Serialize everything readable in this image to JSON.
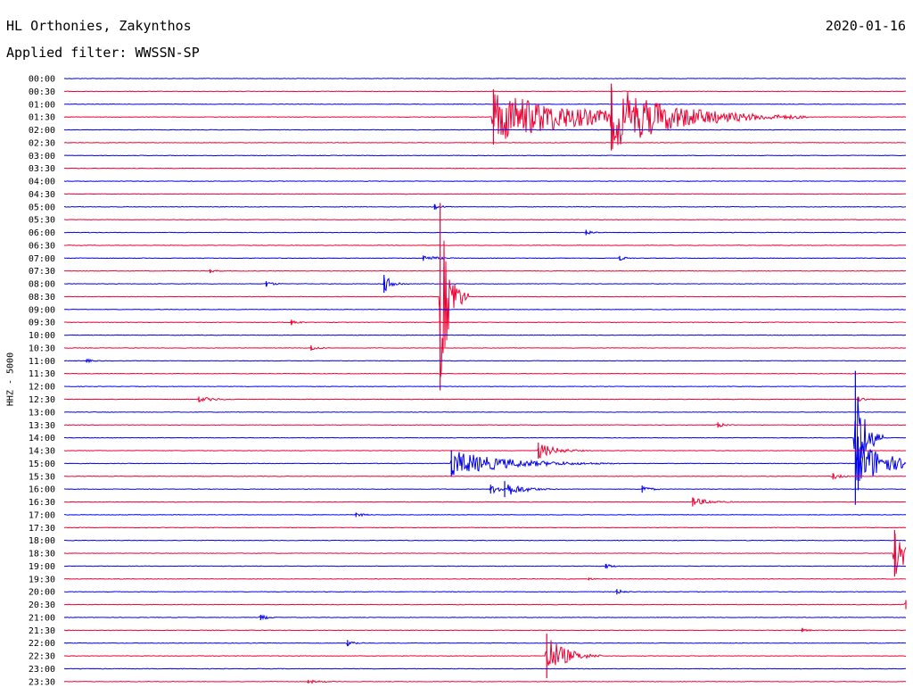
{
  "header": {
    "title": "HL Orthonies, Zakynthos",
    "date": "2020-01-16",
    "filter": "Applied filter: WWSSN-SP"
  },
  "colors": {
    "blue": "#0000ee",
    "red": "#ee0033"
  },
  "chart_data": {
    "type": "line",
    "subtype": "helicorder",
    "ylabel": "HHZ - 5000",
    "row_labels": [
      "00:00",
      "00:30",
      "01:00",
      "01:30",
      "02:00",
      "02:30",
      "03:00",
      "03:30",
      "04:00",
      "04:30",
      "05:00",
      "05:30",
      "06:00",
      "06:30",
      "07:00",
      "07:30",
      "08:00",
      "08:30",
      "09:00",
      "09:30",
      "10:00",
      "10:30",
      "11:00",
      "11:30",
      "12:00",
      "12:30",
      "13:00",
      "13:30",
      "14:00",
      "14:30",
      "15:00",
      "15:30",
      "16:00",
      "16:30",
      "17:00",
      "17:30",
      "18:00",
      "18:30",
      "19:00",
      "19:30",
      "20:00",
      "20:30",
      "21:00",
      "21:30",
      "22:00",
      "22:30",
      "23:00",
      "23:30"
    ],
    "row_minutes": 30,
    "series_colors": [
      "#0000ee",
      "#ee0033"
    ],
    "events": [
      {
        "row": 3,
        "minute": 15.3,
        "amplitude": 62,
        "duration": 9
      },
      {
        "row": 3,
        "minute": 19.5,
        "amplitude": 75,
        "duration": 7
      },
      {
        "row": 3,
        "minute": 23.3,
        "amplitude": 5,
        "duration": 2
      },
      {
        "row": 10,
        "minute": 13.2,
        "amplitude": 6,
        "duration": 1
      },
      {
        "row": 12,
        "minute": 18.6,
        "amplitude": 6,
        "duration": 1
      },
      {
        "row": 14,
        "minute": 12.8,
        "amplitude": 6,
        "duration": 2
      },
      {
        "row": 14,
        "minute": 19.8,
        "amplitude": 5,
        "duration": 1
      },
      {
        "row": 15,
        "minute": 5.2,
        "amplitude": 4,
        "duration": 1
      },
      {
        "row": 16,
        "minute": 7.2,
        "amplitude": 6,
        "duration": 1
      },
      {
        "row": 16,
        "minute": 11.4,
        "amplitude": 20,
        "duration": 1
      },
      {
        "row": 17,
        "minute": 13.4,
        "amplitude": 210,
        "duration": 1
      },
      {
        "row": 19,
        "minute": 8.1,
        "amplitude": 6,
        "duration": 1
      },
      {
        "row": 21,
        "minute": 8.8,
        "amplitude": 6,
        "duration": 1
      },
      {
        "row": 22,
        "minute": 0.8,
        "amplitude": 4,
        "duration": 1
      },
      {
        "row": 25,
        "minute": 4.8,
        "amplitude": 6,
        "duration": 2
      },
      {
        "row": 25,
        "minute": 28.3,
        "amplitude": 6,
        "duration": 1
      },
      {
        "row": 27,
        "minute": 23.3,
        "amplitude": 6,
        "duration": 1
      },
      {
        "row": 28,
        "minute": 28.2,
        "amplitude": 150,
        "duration": 1
      },
      {
        "row": 29,
        "minute": 16.9,
        "amplitude": 18,
        "duration": 2
      },
      {
        "row": 30,
        "minute": 13.8,
        "amplitude": 30,
        "duration": 6
      },
      {
        "row": 30,
        "minute": 28.3,
        "amplitude": 60,
        "duration": 3
      },
      {
        "row": 31,
        "minute": 27.4,
        "amplitude": 7,
        "duration": 1
      },
      {
        "row": 32,
        "minute": 15.2,
        "amplitude": 10,
        "duration": 2
      },
      {
        "row": 32,
        "minute": 15.7,
        "amplitude": 18,
        "duration": 2
      },
      {
        "row": 32,
        "minute": 20.6,
        "amplitude": 8,
        "duration": 1
      },
      {
        "row": 33,
        "minute": 22.4,
        "amplitude": 10,
        "duration": 2
      },
      {
        "row": 34,
        "minute": 10.4,
        "amplitude": 5,
        "duration": 1
      },
      {
        "row": 37,
        "minute": 29.6,
        "amplitude": 52,
        "duration": 4
      },
      {
        "row": 38,
        "minute": 19.3,
        "amplitude": 5,
        "duration": 1
      },
      {
        "row": 39,
        "minute": 18.7,
        "amplitude": 3,
        "duration": 1
      },
      {
        "row": 40,
        "minute": 19.7,
        "amplitude": 6,
        "duration": 1
      },
      {
        "row": 41,
        "minute": 30.0,
        "amplitude": 10,
        "duration": 1
      },
      {
        "row": 42,
        "minute": 7.0,
        "amplitude": 6,
        "duration": 1
      },
      {
        "row": 43,
        "minute": 26.3,
        "amplitude": 4,
        "duration": 1
      },
      {
        "row": 44,
        "minute": 10.1,
        "amplitude": 7,
        "duration": 1
      },
      {
        "row": 45,
        "minute": 17.2,
        "amplitude": 50,
        "duration": 2
      },
      {
        "row": 47,
        "minute": 8.7,
        "amplitude": 4,
        "duration": 2
      }
    ]
  }
}
